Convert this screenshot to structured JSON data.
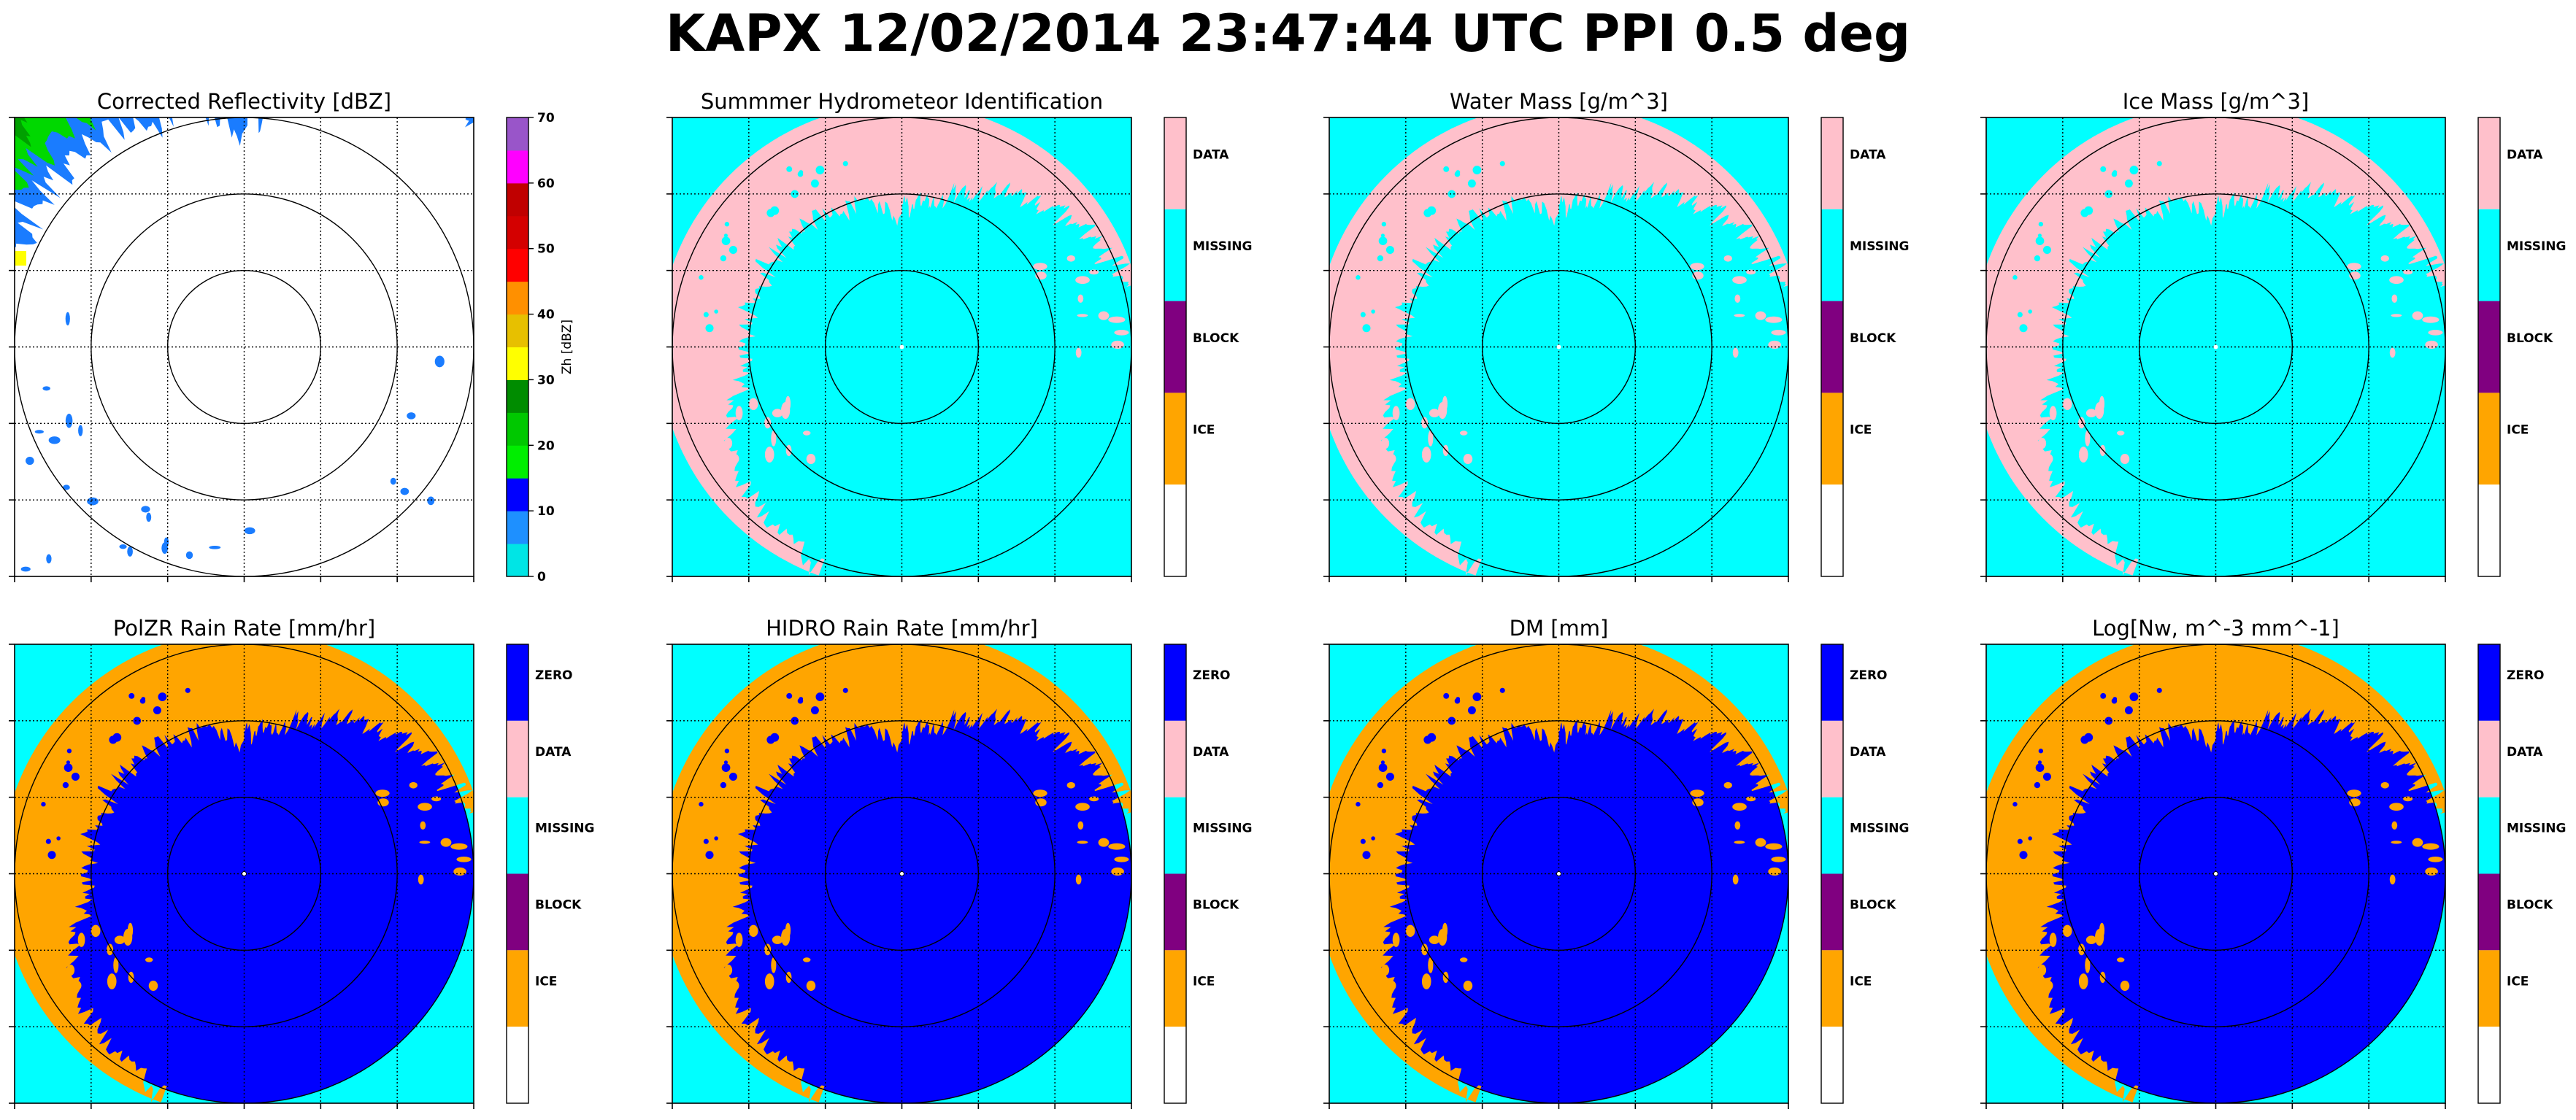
{
  "figure": {
    "title": "KAPX 12/02/2014 23:47:44 UTC PPI 0.5 deg"
  },
  "colors": {
    "cyan": "#00ffff",
    "pink": "#ffc0cb",
    "blue": "#0000ff",
    "orange": "#ffa500",
    "purple": "#800080",
    "white": "#ffffff"
  },
  "chart_data": [
    {
      "type": "heatmap",
      "title": "Corrected Reflectivity [dBZ]",
      "colorbar": {
        "kind": "continuous",
        "label": "Zh [dBZ]",
        "range": [
          0,
          70
        ],
        "ticks": [
          0,
          10,
          20,
          30,
          40,
          50,
          60,
          70
        ],
        "colors": [
          "#00e5e5",
          "#1e90ff",
          "#0000ff",
          "#00ee00",
          "#00c800",
          "#008c00",
          "#ffff00",
          "#e7c000",
          "#ff9000",
          "#ff0000",
          "#d40000",
          "#c00000",
          "#ff00ff",
          "#9955c9"
        ]
      },
      "rings": 3,
      "grid": true
    },
    {
      "type": "heatmap",
      "title": "Summmer Hydrometeor Identification",
      "colorbar": {
        "kind": "categorical",
        "categories": [
          "DATA",
          "MISSING",
          "BLOCK",
          "ICE",
          ""
        ],
        "colors": [
          "#ffc0cb",
          "#00ffff",
          "#800080",
          "#ffa500",
          "#ffffff"
        ]
      },
      "rings": 3,
      "grid": true
    },
    {
      "type": "heatmap",
      "title": "Water Mass [g/m^3]",
      "colorbar": {
        "kind": "categorical",
        "categories": [
          "DATA",
          "MISSING",
          "BLOCK",
          "ICE",
          ""
        ],
        "colors": [
          "#ffc0cb",
          "#00ffff",
          "#800080",
          "#ffa500",
          "#ffffff"
        ]
      },
      "rings": 3,
      "grid": true
    },
    {
      "type": "heatmap",
      "title": "Ice Mass [g/m^3]",
      "colorbar": {
        "kind": "categorical",
        "categories": [
          "DATA",
          "MISSING",
          "BLOCK",
          "ICE",
          ""
        ],
        "colors": [
          "#ffc0cb",
          "#00ffff",
          "#800080",
          "#ffa500",
          "#ffffff"
        ]
      },
      "rings": 3,
      "grid": true
    },
    {
      "type": "heatmap",
      "title": "PolZR Rain Rate [mm/hr]",
      "colorbar": {
        "kind": "categorical",
        "categories": [
          "ZERO",
          "DATA",
          "MISSING",
          "BLOCK",
          "ICE",
          ""
        ],
        "colors": [
          "#0000ff",
          "#ffc0cb",
          "#00ffff",
          "#800080",
          "#ffa500",
          "#ffffff"
        ]
      },
      "rings": 3,
      "grid": true
    },
    {
      "type": "heatmap",
      "title": "HIDRO Rain Rate [mm/hr]",
      "colorbar": {
        "kind": "categorical",
        "categories": [
          "ZERO",
          "DATA",
          "MISSING",
          "BLOCK",
          "ICE",
          ""
        ],
        "colors": [
          "#0000ff",
          "#ffc0cb",
          "#00ffff",
          "#800080",
          "#ffa500",
          "#ffffff"
        ]
      },
      "rings": 3,
      "grid": true
    },
    {
      "type": "heatmap",
      "title": "DM [mm]",
      "colorbar": {
        "kind": "categorical",
        "categories": [
          "ZERO",
          "DATA",
          "MISSING",
          "BLOCK",
          "ICE",
          ""
        ],
        "colors": [
          "#0000ff",
          "#ffc0cb",
          "#00ffff",
          "#800080",
          "#ffa500",
          "#ffffff"
        ]
      },
      "rings": 3,
      "grid": true
    },
    {
      "type": "heatmap",
      "title": "Log[Nw, m^-3 mm^-1]",
      "colorbar": {
        "kind": "categorical",
        "categories": [
          "ZERO",
          "DATA",
          "MISSING",
          "BLOCK",
          "ICE",
          ""
        ],
        "colors": [
          "#0000ff",
          "#ffc0cb",
          "#00ffff",
          "#800080",
          "#ffa500",
          "#ffffff"
        ]
      },
      "rings": 3,
      "grid": true
    }
  ]
}
